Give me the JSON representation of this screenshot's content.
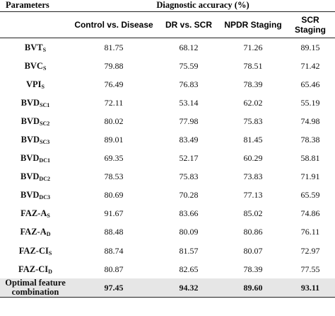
{
  "header": {
    "parameters": "Parameters",
    "diagnostic_accuracy": "Diagnostic accuracy (%)",
    "columns": [
      "Control vs. Disease",
      "DR vs. SCR",
      "NPDR Staging",
      "SCR Staging"
    ]
  },
  "rows": [
    {
      "base": "BVT",
      "sub": "S",
      "values": [
        "81.75",
        "68.12",
        "71.26",
        "89.15"
      ]
    },
    {
      "base": "BVC",
      "sub": "S",
      "values": [
        "79.88",
        "75.59",
        "78.51",
        "71.42"
      ]
    },
    {
      "base": "VPI",
      "sub": "S",
      "values": [
        "76.49",
        "76.83",
        "78.39",
        "65.46"
      ]
    },
    {
      "base": "BVD",
      "sub": "SC1",
      "values": [
        "72.11",
        "53.14",
        "62.02",
        "55.19"
      ]
    },
    {
      "base": "BVD",
      "sub": "SC2",
      "values": [
        "80.02",
        "77.98",
        "75.83",
        "74.98"
      ]
    },
    {
      "base": "BVD",
      "sub": "SC3",
      "values": [
        "89.01",
        "83.49",
        "81.45",
        "78.38"
      ]
    },
    {
      "base": "BVD",
      "sub": "DC1",
      "values": [
        "69.35",
        "52.17",
        "60.29",
        "58.81"
      ]
    },
    {
      "base": "BVD",
      "sub": "DC2",
      "values": [
        "78.53",
        "75.83",
        "73.83",
        "71.91"
      ]
    },
    {
      "base": "BVD",
      "sub": "DC3",
      "values": [
        "80.69",
        "70.28",
        "77.13",
        "65.59"
      ]
    },
    {
      "base": "FAZ-A",
      "sub": "S",
      "values": [
        "91.67",
        "83.66",
        "85.02",
        "74.86"
      ]
    },
    {
      "base": "FAZ-A",
      "sub": "D",
      "values": [
        "88.48",
        "80.09",
        "80.86",
        "76.11"
      ]
    },
    {
      "base": "FAZ-CI",
      "sub": "S",
      "values": [
        "88.74",
        "81.57",
        "80.07",
        "72.97"
      ]
    },
    {
      "base": "FAZ-CI",
      "sub": "D",
      "values": [
        "80.87",
        "82.65",
        "78.39",
        "77.55"
      ]
    }
  ],
  "optimal": {
    "line1": "Optimal feature",
    "line2": "combination",
    "values": [
      "97.45",
      "94.32",
      "89.60",
      "93.11"
    ]
  }
}
